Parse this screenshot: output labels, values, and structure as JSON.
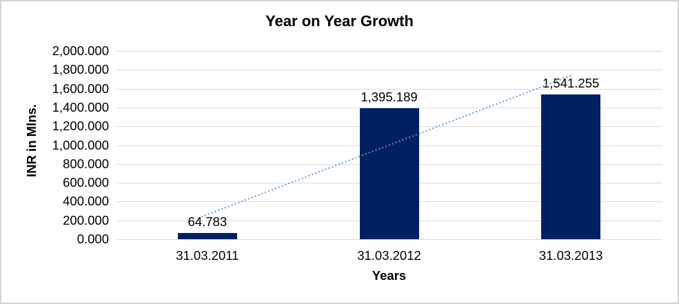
{
  "chart_data": {
    "type": "bar",
    "title": "Year on Year Growth",
    "categories": [
      "31.03.2011",
      "31.03.2012",
      "31.03.2013"
    ],
    "values": [
      64.783,
      1395.189,
      1541.255
    ],
    "data_labels": [
      "64.783",
      "1,395.189",
      "1,541.255"
    ],
    "xlabel": "Years",
    "ylabel": "INR in Mlns.",
    "ylim": [
      0,
      2000
    ],
    "ytick_interval": 200,
    "ytick_labels": [
      "0.000",
      "200.000",
      "400.000",
      "600.000",
      "800.000",
      "1,000.000",
      "1,200.000",
      "1,400.000",
      "1,600.000",
      "1,800.000",
      "2,000.000"
    ],
    "grid": true,
    "legend": "none",
    "trendline": {
      "type": "linear",
      "style": "dotted",
      "color": "#5B9BD5"
    },
    "colors": {
      "bar": "#002060",
      "gridline": "#D9D9D9",
      "trendline": "#5B9BD5",
      "text": "#000000",
      "border": "#D2D2D2",
      "background": "#FFFFFF"
    }
  }
}
